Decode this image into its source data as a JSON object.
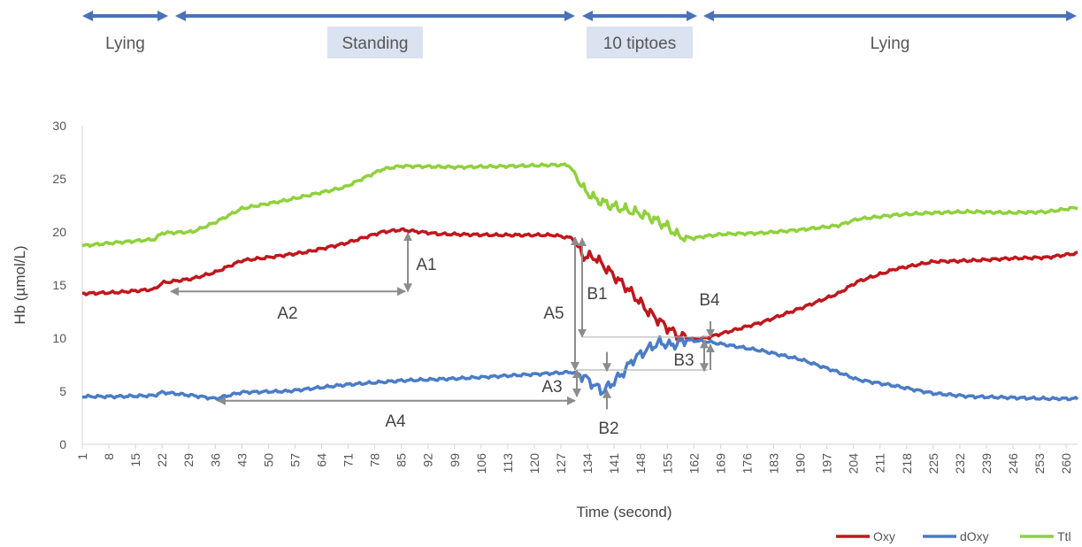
{
  "chart_data": {
    "type": "line",
    "title": "",
    "xlabel": "Time (second)",
    "ylabel": "Hb (µmol/L)",
    "xlim": [
      1,
      263
    ],
    "ylim": [
      0,
      30
    ],
    "yticks": [
      0,
      5,
      10,
      15,
      20,
      25,
      30
    ],
    "xticks": [
      "1",
      "8",
      "15",
      "22",
      "29",
      "36",
      "43",
      "50",
      "57",
      "64",
      "71",
      "78",
      "85",
      "92",
      "99",
      "106",
      "113",
      "120",
      "127",
      "134",
      "141",
      "148",
      "155",
      "162",
      "169",
      "176",
      "183",
      "190",
      "197",
      "204",
      "211",
      "218",
      "225",
      "232",
      "239",
      "246",
      "253",
      "260"
    ],
    "grid": false,
    "legend_position": "bottom-right",
    "colors": {
      "Oxy": "#c0171d",
      "dOxy": "#4a7cc7",
      "Ttl": "#8fd13c",
      "annotation": "#8c8c8c",
      "phase_arrow": "#4a72b9",
      "phase_box": "#dbe3f1"
    },
    "phases": [
      {
        "label": "Lying",
        "start": 1,
        "end": 22,
        "highlight": false
      },
      {
        "label": "Standing",
        "start": 23,
        "end": 130,
        "highlight": true
      },
      {
        "label": "10 tiptoes",
        "start": 131,
        "end": 163,
        "highlight": true
      },
      {
        "label": "Lying",
        "start": 164,
        "end": 263,
        "highlight": false
      }
    ],
    "series": [
      {
        "name": "Oxy",
        "x": [
          1,
          10,
          20,
          22,
          30,
          36,
          43,
          50,
          60,
          70,
          80,
          85,
          95,
          110,
          125,
          130,
          133,
          136,
          140,
          145,
          150,
          155,
          158,
          162,
          165,
          170,
          180,
          190,
          200,
          205,
          215,
          225,
          235,
          245,
          255,
          263
        ],
        "y": [
          14.2,
          14.3,
          14.6,
          15.2,
          15.6,
          16.2,
          17.3,
          17.6,
          18.1,
          18.9,
          20.0,
          20.2,
          19.8,
          19.7,
          19.7,
          19.4,
          17.7,
          17.6,
          16.2,
          14.5,
          12.5,
          11.0,
          10.2,
          9.9,
          10.0,
          10.5,
          11.5,
          12.8,
          14.2,
          15.3,
          16.5,
          17.2,
          17.3,
          17.5,
          17.6,
          18.0
        ]
      },
      {
        "name": "dOxy",
        "x": [
          1,
          10,
          20,
          22,
          30,
          36,
          43,
          55,
          70,
          85,
          100,
          115,
          125,
          130,
          133,
          136,
          138,
          140,
          143,
          146,
          150,
          153,
          156,
          160,
          165,
          170,
          180,
          190,
          200,
          205,
          215,
          225,
          235,
          245,
          255,
          263
        ],
        "y": [
          4.5,
          4.5,
          4.6,
          4.9,
          4.6,
          4.3,
          4.9,
          5.0,
          5.6,
          6.0,
          6.2,
          6.5,
          6.7,
          6.8,
          6.4,
          5.5,
          5.0,
          5.6,
          6.6,
          8.0,
          9.0,
          9.6,
          9.3,
          9.8,
          9.7,
          9.4,
          8.8,
          8.0,
          6.8,
          6.1,
          5.5,
          4.8,
          4.5,
          4.4,
          4.3,
          4.3
        ]
      },
      {
        "name": "Ttl",
        "x": [
          1,
          10,
          20,
          22,
          30,
          36,
          43,
          55,
          70,
          80,
          85,
          100,
          115,
          125,
          129,
          131,
          133,
          136,
          140,
          145,
          150,
          155,
          158,
          162,
          165,
          170,
          180,
          190,
          200,
          205,
          215,
          225,
          235,
          245,
          255,
          263
        ],
        "y": [
          18.7,
          19.0,
          19.3,
          19.9,
          20.0,
          20.9,
          22.2,
          23.0,
          24.2,
          25.9,
          26.2,
          26.1,
          26.2,
          26.3,
          26.3,
          25.3,
          24.0,
          23.1,
          22.5,
          22.0,
          21.5,
          20.5,
          19.6,
          19.4,
          19.6,
          19.8,
          19.9,
          20.2,
          20.6,
          21.2,
          21.6,
          21.8,
          21.9,
          21.8,
          21.9,
          22.3
        ]
      }
    ],
    "annotations": [
      "A1",
      "A2",
      "A3",
      "A4",
      "A5",
      "B1",
      "B2",
      "B3",
      "B4"
    ]
  }
}
